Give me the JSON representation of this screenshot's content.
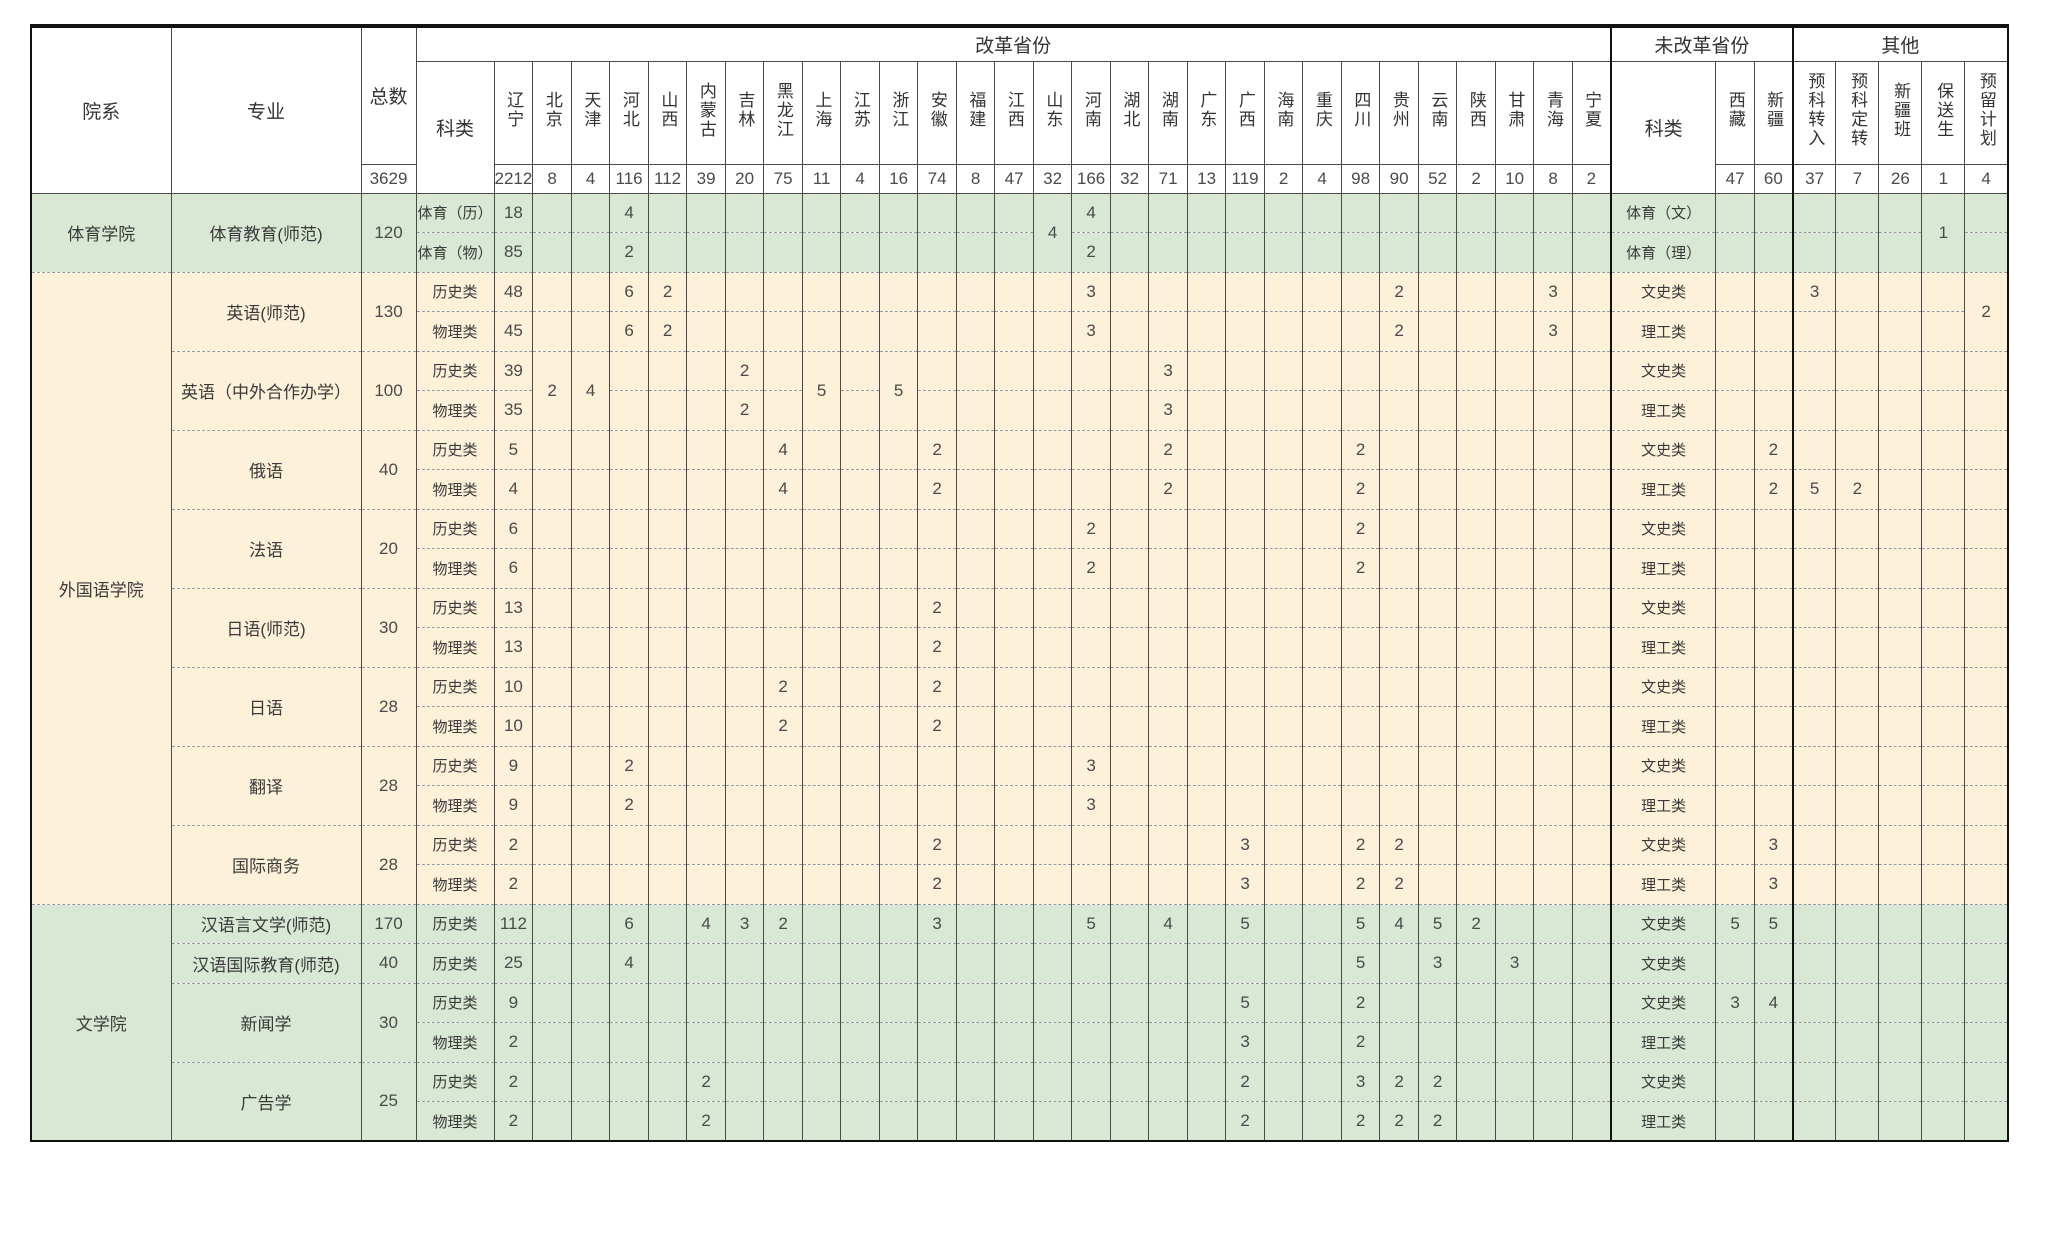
{
  "style": {
    "green_bg": "#d8e8d5",
    "cream_bg": "#fdf1da",
    "grid_color": "#4a4a4a",
    "dash_color": "#999999",
    "thick_color": "#111111"
  },
  "headers": {
    "dept": "院系",
    "major": "专业",
    "total": "总数",
    "category": "科类",
    "reform_group": "改革省份",
    "non_reform_group": "未改革省份",
    "other_group": "其他",
    "non_reform_category": "科类"
  },
  "reform_provinces": [
    "辽宁",
    "北京",
    "天津",
    "河北",
    "山西",
    "内蒙古",
    "吉林",
    "黑龙江",
    "上海",
    "江苏",
    "浙江",
    "安徽",
    "福建",
    "江西",
    "山东",
    "河南",
    "湖北",
    "湖南",
    "广东",
    "广西",
    "海南",
    "重庆",
    "四川",
    "贵州",
    "云南",
    "陕西",
    "甘肃",
    "青海",
    "宁夏"
  ],
  "non_reform_provinces": [
    "西藏",
    "新疆"
  ],
  "other_columns": [
    "预科转入",
    "预科定转",
    "新疆班",
    "保送生",
    "预留计划"
  ],
  "totals": {
    "grand": "3629",
    "reform": [
      "2212",
      "8",
      "4",
      "116",
      "112",
      "39",
      "20",
      "75",
      "11",
      "4",
      "16",
      "74",
      "8",
      "47",
      "32",
      "166",
      "32",
      "71",
      "13",
      "119",
      "2",
      "4",
      "98",
      "90",
      "52",
      "2",
      "10",
      "8",
      "2"
    ],
    "non_reform": [
      "47",
      "60"
    ],
    "other": [
      "37",
      "7",
      "26",
      "1",
      "4"
    ]
  },
  "colleges": [
    {
      "name": "体育学院",
      "bg": "green",
      "majors": [
        {
          "name": "体育教育(师范)",
          "total": "120",
          "merged": [
            {
              "col": "p14",
              "v": "4"
            },
            {
              "col": "o3",
              "v": "1"
            }
          ],
          "rows": [
            {
              "cat": "体育（历）",
              "nr_cat": "体育（文）",
              "cells": {
                "p0": "18",
                "p3": "4",
                "p15": "4"
              }
            },
            {
              "cat": "体育（物）",
              "nr_cat": "体育（理）",
              "cells": {
                "p0": "85",
                "p3": "2",
                "p15": "2"
              }
            }
          ]
        }
      ]
    },
    {
      "name": "外国语学院",
      "bg": "cream",
      "majors": [
        {
          "name": "英语(师范)",
          "total": "130",
          "merged": [
            {
              "col": "o4",
              "v": "2"
            }
          ],
          "rows": [
            {
              "cat": "历史类",
              "nr_cat": "文史类",
              "cells": {
                "p0": "48",
                "p3": "6",
                "p4": "2",
                "p15": "3",
                "p23": "2",
                "p27": "3",
                "o0": "3"
              }
            },
            {
              "cat": "物理类",
              "nr_cat": "理工类",
              "cells": {
                "p0": "45",
                "p3": "6",
                "p4": "2",
                "p15": "3",
                "p23": "2",
                "p27": "3"
              }
            }
          ]
        },
        {
          "name": "英语（中外合作办学）",
          "total": "100",
          "merged": [
            {
              "col": "p1",
              "v": "2"
            },
            {
              "col": "p2",
              "v": "4"
            },
            {
              "col": "p8",
              "v": "5"
            },
            {
              "col": "p10",
              "v": "5"
            }
          ],
          "rows": [
            {
              "cat": "历史类",
              "nr_cat": "文史类",
              "cells": {
                "p0": "39",
                "p6": "2",
                "p17": "3"
              }
            },
            {
              "cat": "物理类",
              "nr_cat": "理工类",
              "cells": {
                "p0": "35",
                "p6": "2",
                "p17": "3"
              }
            }
          ]
        },
        {
          "name": "俄语",
          "total": "40",
          "merged": [],
          "rows": [
            {
              "cat": "历史类",
              "nr_cat": "文史类",
              "cells": {
                "p0": "5",
                "p7": "4",
                "p11": "2",
                "p17": "2",
                "p22": "2",
                "n1": "2"
              }
            },
            {
              "cat": "物理类",
              "nr_cat": "理工类",
              "cells": {
                "p0": "4",
                "p7": "4",
                "p11": "2",
                "p17": "2",
                "p22": "2",
                "n1": "2",
                "o0": "5",
                "o1": "2"
              }
            }
          ]
        },
        {
          "name": "法语",
          "total": "20",
          "merged": [],
          "rows": [
            {
              "cat": "历史类",
              "nr_cat": "文史类",
              "cells": {
                "p0": "6",
                "p15": "2",
                "p22": "2"
              }
            },
            {
              "cat": "物理类",
              "nr_cat": "理工类",
              "cells": {
                "p0": "6",
                "p15": "2",
                "p22": "2"
              }
            }
          ]
        },
        {
          "name": "日语(师范)",
          "total": "30",
          "merged": [],
          "rows": [
            {
              "cat": "历史类",
              "nr_cat": "文史类",
              "cells": {
                "p0": "13",
                "p11": "2"
              }
            },
            {
              "cat": "物理类",
              "nr_cat": "理工类",
              "cells": {
                "p0": "13",
                "p11": "2"
              }
            }
          ]
        },
        {
          "name": "日语",
          "total": "28",
          "merged": [],
          "rows": [
            {
              "cat": "历史类",
              "nr_cat": "文史类",
              "cells": {
                "p0": "10",
                "p7": "2",
                "p11": "2"
              }
            },
            {
              "cat": "物理类",
              "nr_cat": "理工类",
              "cells": {
                "p0": "10",
                "p7": "2",
                "p11": "2"
              }
            }
          ]
        },
        {
          "name": "翻译",
          "total": "28",
          "merged": [],
          "rows": [
            {
              "cat": "历史类",
              "nr_cat": "文史类",
              "cells": {
                "p0": "9",
                "p3": "2",
                "p15": "3"
              }
            },
            {
              "cat": "物理类",
              "nr_cat": "理工类",
              "cells": {
                "p0": "9",
                "p3": "2",
                "p15": "3"
              }
            }
          ]
        },
        {
          "name": "国际商务",
          "total": "28",
          "merged": [],
          "rows": [
            {
              "cat": "历史类",
              "nr_cat": "文史类",
              "cells": {
                "p0": "2",
                "p11": "2",
                "p19": "3",
                "p22": "2",
                "p23": "2",
                "n1": "3"
              }
            },
            {
              "cat": "物理类",
              "nr_cat": "理工类",
              "cells": {
                "p0": "2",
                "p11": "2",
                "p19": "3",
                "p22": "2",
                "p23": "2",
                "n1": "3"
              }
            }
          ]
        }
      ]
    },
    {
      "name": "文学院",
      "bg": "green",
      "majors": [
        {
          "name": "汉语言文学(师范)",
          "total": "170",
          "merged": [],
          "rows": [
            {
              "cat": "历史类",
              "nr_cat": "文史类",
              "cells": {
                "p0": "112",
                "p3": "6",
                "p5": "4",
                "p6": "3",
                "p7": "2",
                "p11": "3",
                "p15": "5",
                "p17": "4",
                "p19": "5",
                "p22": "5",
                "p23": "4",
                "p24": "5",
                "p25": "2",
                "n0": "5",
                "n1": "5"
              }
            }
          ]
        },
        {
          "name": "汉语国际教育(师范)",
          "total": "40",
          "merged": [],
          "rows": [
            {
              "cat": "历史类",
              "nr_cat": "文史类",
              "cells": {
                "p0": "25",
                "p3": "4",
                "p22": "5",
                "p24": "3",
                "p26": "3"
              }
            }
          ]
        },
        {
          "name": "新闻学",
          "total": "30",
          "merged": [],
          "rows": [
            {
              "cat": "历史类",
              "nr_cat": "文史类",
              "cells": {
                "p0": "9",
                "p19": "5",
                "p22": "2",
                "n0": "3",
                "n1": "4"
              }
            },
            {
              "cat": "物理类",
              "nr_cat": "理工类",
              "cells": {
                "p0": "2",
                "p19": "3",
                "p22": "2"
              }
            }
          ]
        },
        {
          "name": "广告学",
          "total": "25",
          "merged": [],
          "rows": [
            {
              "cat": "历史类",
              "nr_cat": "文史类",
              "cells": {
                "p0": "2",
                "p5": "2",
                "p19": "2",
                "p22": "3",
                "p23": "2",
                "p24": "2"
              }
            },
            {
              "cat": "物理类",
              "nr_cat": "理工类",
              "cells": {
                "p0": "2",
                "p5": "2",
                "p19": "2",
                "p22": "2",
                "p23": "2",
                "p24": "2"
              }
            }
          ]
        }
      ]
    }
  ]
}
